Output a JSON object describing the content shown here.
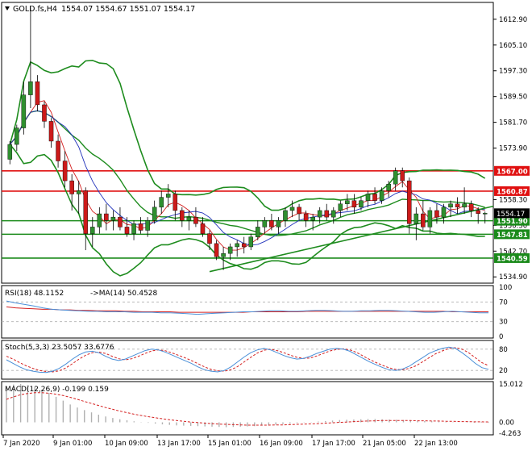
{
  "header": {
    "symbol": "GOLD.fs,H4",
    "ohlc": "1554.07 1554.67 1551.07 1554.17",
    "menu_icon": "triangle-down-icon"
  },
  "colors": {
    "bull": "#2f8f2f",
    "bear": "#cc1a1a",
    "band": "#1e8c1e",
    "hline_red": "#e01010",
    "hline_green": "#1a8a1a",
    "ma_red": "#d42020",
    "ma_blue": "#2233bb",
    "rsi": "#4a8fd8",
    "stoch_main": "#4a8fd8",
    "stoch_signal": "#d42020",
    "macd_hist": "#b0b0b0",
    "macd_signal": "#d42020",
    "grid": "#b0b0b0"
  },
  "chart_data": [
    {
      "type": "candlestick",
      "symbol": "GOLD.fs",
      "timeframe": "H4",
      "y_ticks": [
        1612.9,
        1605.1,
        1597.3,
        1589.5,
        1581.7,
        1573.9,
        1558.3,
        1550.5,
        1542.7,
        1534.9
      ],
      "x_ticks": [
        "7 Jan 2020",
        "9 Jan 01:00",
        "10 Jan 09:00",
        "13 Jan 17:00",
        "15 Jan 01:00",
        "16 Jan 09:00",
        "17 Jan 17:00",
        "21 Jan 05:00",
        "22 Jan 13:00"
      ],
      "ylim": [
        1533.0,
        1618.0
      ],
      "horizontal_levels": [
        {
          "value": 1567.0,
          "label": "1567.00",
          "color": "red"
        },
        {
          "value": 1560.87,
          "label": "1560.87",
          "color": "red"
        },
        {
          "value": 1551.9,
          "label": "1551.90",
          "color": "green"
        },
        {
          "value": 1547.81,
          "label": "1547.81",
          "color": "green"
        },
        {
          "value": 1540.59,
          "label": "1540.59",
          "color": "green"
        }
      ],
      "current_price": {
        "value": 1554.17,
        "label": "1554.17"
      },
      "candles": [
        [
          1570.5,
          1576.0,
          1569.0,
          1575.0
        ],
        [
          1575.0,
          1581.0,
          1573.0,
          1580.0
        ],
        [
          1580.0,
          1594.0,
          1578.0,
          1590.0
        ],
        [
          1590.0,
          1616.5,
          1586.0,
          1594.0
        ],
        [
          1594.0,
          1596.0,
          1585.0,
          1587.0
        ],
        [
          1587.0,
          1588.0,
          1580.0,
          1582.0
        ],
        [
          1582.0,
          1583.0,
          1574.0,
          1576.0
        ],
        [
          1576.0,
          1578.0,
          1568.0,
          1570.0
        ],
        [
          1570.0,
          1573.0,
          1562.0,
          1564.0
        ],
        [
          1564.0,
          1566.0,
          1555.0,
          1560.0
        ],
        [
          1560.0,
          1564.0,
          1554.0,
          1561.0
        ],
        [
          1561.0,
          1562.0,
          1543.0,
          1548.0
        ],
        [
          1548.0,
          1553.0,
          1544.0,
          1550.0
        ],
        [
          1550.0,
          1556.0,
          1548.0,
          1554.0
        ],
        [
          1554.0,
          1557.0,
          1549.0,
          1552.0
        ],
        [
          1552.0,
          1555.0,
          1549.0,
          1553.0
        ],
        [
          1553.0,
          1556.0,
          1549.0,
          1550.0
        ],
        [
          1550.0,
          1553.0,
          1547.0,
          1548.0
        ],
        [
          1548.0,
          1552.0,
          1546.0,
          1551.0
        ],
        [
          1551.0,
          1553.0,
          1548.0,
          1549.0
        ],
        [
          1549.0,
          1553.0,
          1547.0,
          1552.0
        ],
        [
          1552.0,
          1558.0,
          1551.0,
          1556.0
        ],
        [
          1556.0,
          1561.0,
          1554.0,
          1559.0
        ],
        [
          1559.0,
          1563.0,
          1556.0,
          1560.0
        ],
        [
          1560.0,
          1561.0,
          1552.0,
          1555.0
        ],
        [
          1555.0,
          1556.0,
          1550.0,
          1552.0
        ],
        [
          1552.0,
          1555.0,
          1549.0,
          1553.0
        ],
        [
          1553.0,
          1556.0,
          1550.0,
          1551.0
        ],
        [
          1551.0,
          1553.0,
          1547.0,
          1548.0
        ],
        [
          1548.0,
          1549.0,
          1543.0,
          1545.0
        ],
        [
          1545.0,
          1546.0,
          1540.0,
          1541.0
        ],
        [
          1541.0,
          1544.0,
          1537.0,
          1542.0
        ],
        [
          1542.0,
          1545.0,
          1540.0,
          1544.0
        ],
        [
          1544.0,
          1546.0,
          1541.0,
          1545.0
        ],
        [
          1545.0,
          1547.0,
          1542.0,
          1544.0
        ],
        [
          1544.0,
          1548.0,
          1543.0,
          1547.0
        ],
        [
          1547.0,
          1552.0,
          1546.0,
          1550.0
        ],
        [
          1550.0,
          1553.0,
          1548.0,
          1552.0
        ],
        [
          1552.0,
          1554.0,
          1549.0,
          1550.0
        ],
        [
          1550.0,
          1553.0,
          1548.0,
          1552.0
        ],
        [
          1552.0,
          1556.0,
          1550.0,
          1555.0
        ],
        [
          1555.0,
          1558.0,
          1553.0,
          1556.0
        ],
        [
          1556.0,
          1557.0,
          1552.0,
          1554.0
        ],
        [
          1554.0,
          1555.0,
          1550.0,
          1552.0
        ],
        [
          1552.0,
          1554.0,
          1549.0,
          1553.0
        ],
        [
          1553.0,
          1556.0,
          1551.0,
          1555.0
        ],
        [
          1555.0,
          1557.0,
          1552.0,
          1553.0
        ],
        [
          1553.0,
          1556.0,
          1551.0,
          1555.0
        ],
        [
          1555.0,
          1558.0,
          1553.0,
          1557.0
        ],
        [
          1557.0,
          1560.0,
          1555.0,
          1558.0
        ],
        [
          1558.0,
          1560.0,
          1554.0,
          1556.0
        ],
        [
          1556.0,
          1559.0,
          1555.0,
          1558.0
        ],
        [
          1558.0,
          1561.0,
          1556.0,
          1560.0
        ],
        [
          1560.0,
          1562.0,
          1557.0,
          1558.0
        ],
        [
          1558.0,
          1562.0,
          1557.0,
          1561.0
        ],
        [
          1561.0,
          1564.0,
          1559.0,
          1563.0
        ],
        [
          1563.0,
          1568.0,
          1561.0,
          1567.0
        ],
        [
          1567.0,
          1568.0,
          1562.0,
          1564.0
        ],
        [
          1564.0,
          1565.0,
          1548.0,
          1551.0
        ],
        [
          1551.0,
          1556.0,
          1546.0,
          1554.0
        ],
        [
          1554.0,
          1558.0,
          1549.0,
          1550.0
        ],
        [
          1550.0,
          1556.0,
          1548.0,
          1555.0
        ],
        [
          1555.0,
          1557.0,
          1551.0,
          1553.0
        ],
        [
          1553.0,
          1557.0,
          1551.0,
          1556.0
        ],
        [
          1556.0,
          1558.0,
          1553.0,
          1557.0
        ],
        [
          1557.0,
          1559.0,
          1554.0,
          1556.0
        ],
        [
          1556.0,
          1562.0,
          1554.0,
          1557.0
        ],
        [
          1557.0,
          1558.0,
          1553.0,
          1555.0
        ],
        [
          1555.0,
          1556.0,
          1551.0,
          1554.07
        ],
        [
          1554.07,
          1554.67,
          1551.07,
          1554.17
        ]
      ]
    },
    {
      "type": "line",
      "indicator": "RSI",
      "label": "RSI(18) 48.1152",
      "ma_label": "->MA(14) 50.4528",
      "levels": [
        70,
        30
      ],
      "y_ticks": [
        100,
        70,
        30,
        0
      ],
      "ylim": [
        0,
        100
      ],
      "rsi": [
        72,
        68,
        65,
        62,
        58,
        55,
        54,
        53,
        52,
        51,
        51,
        50,
        50,
        50,
        49,
        49,
        49,
        48,
        48,
        47,
        46,
        45,
        46,
        47,
        48,
        49,
        50,
        50,
        51,
        52,
        52,
        51,
        51,
        52,
        53,
        53,
        52,
        51,
        51,
        52,
        52,
        53,
        53,
        52,
        51,
        50,
        49,
        49,
        50,
        51,
        50,
        49,
        48,
        48
      ],
      "ma": [
        60,
        58,
        57,
        56,
        55,
        55,
        54,
        54,
        53,
        53,
        52,
        52,
        52,
        51,
        51,
        50,
        50,
        50,
        50,
        49,
        49,
        49,
        49,
        49,
        49,
        49,
        49,
        50,
        50,
        50,
        50,
        50,
        50,
        51,
        51,
        51,
        51,
        51,
        51,
        51,
        51,
        51,
        51,
        51,
        51,
        51,
        51,
        51,
        51,
        50,
        50,
        50,
        50,
        50
      ]
    },
    {
      "type": "line",
      "indicator": "Stochastic",
      "label": "Stoch(5,3,3) 23.5057 33.6776",
      "levels": [
        80,
        20
      ],
      "y_ticks": [
        80,
        20
      ],
      "ylim": [
        0,
        100
      ],
      "main": [
        50,
        40,
        30,
        22,
        18,
        15,
        14,
        18,
        26,
        38,
        52,
        64,
        72,
        74,
        70,
        60,
        52,
        48,
        52,
        60,
        68,
        76,
        80,
        78,
        72,
        64,
        56,
        48,
        40,
        30,
        22,
        18,
        16,
        20,
        30,
        44,
        58,
        70,
        78,
        82,
        78,
        70,
        62,
        56,
        52,
        54,
        60,
        68,
        74,
        80,
        82,
        80,
        74,
        64,
        54,
        44,
        36,
        28,
        22,
        20,
        24,
        32,
        44,
        56,
        68,
        76,
        82,
        86,
        82,
        70,
        56,
        40,
        28,
        23.5
      ],
      "signal": [
        60,
        52,
        42,
        33,
        26,
        20,
        17,
        16,
        19,
        27,
        39,
        52,
        63,
        70,
        72,
        68,
        60,
        53,
        50,
        53,
        60,
        68,
        75,
        78,
        76,
        70,
        63,
        56,
        48,
        39,
        30,
        23,
        19,
        18,
        22,
        31,
        44,
        57,
        69,
        77,
        80,
        76,
        70,
        63,
        57,
        54,
        55,
        61,
        68,
        75,
        79,
        81,
        78,
        71,
        61,
        51,
        42,
        34,
        27,
        23,
        22,
        26,
        33,
        44,
        56,
        67,
        75,
        82,
        84,
        80,
        70,
        56,
        42,
        33.7
      ]
    },
    {
      "type": "bar",
      "indicator": "MACD",
      "label": "MACD(12,26,9) -0.199 0.159",
      "y_ticks": [
        "15.012",
        "0.00",
        "-4.263"
      ],
      "ylim": [
        -4.263,
        15.012
      ],
      "histogram": [
        13.5,
        14.8,
        15.0,
        14.6,
        13.8,
        12.8,
        11.5,
        10.0,
        8.5,
        7.0,
        5.8,
        4.8,
        3.9,
        3.0,
        2.3,
        1.7,
        1.2,
        0.8,
        0.4,
        0.1,
        -0.2,
        -0.5,
        -0.8,
        -1.0,
        -1.2,
        -1.3,
        -1.4,
        -1.5,
        -1.6,
        -1.7,
        -1.8,
        -1.9,
        -1.8,
        -1.7,
        -1.6,
        -1.5,
        -1.3,
        -1.1,
        -0.9,
        -0.7,
        -0.5,
        -0.3,
        -0.1,
        0.1,
        0.3,
        0.5,
        0.7,
        0.9,
        1.0,
        1.1,
        1.2,
        1.3,
        1.3,
        1.2,
        1.1,
        1.0,
        0.9,
        0.8,
        0.6,
        0.5,
        0.4,
        0.3,
        0.2,
        0.1,
        0.0,
        -0.1,
        -0.15,
        -0.18,
        -0.199
      ],
      "signal": [
        9.0,
        10.0,
        10.8,
        11.3,
        11.6,
        11.6,
        11.4,
        11.0,
        10.5,
        9.8,
        9.0,
        8.2,
        7.4,
        6.6,
        5.8,
        5.1,
        4.4,
        3.8,
        3.2,
        2.7,
        2.2,
        1.8,
        1.4,
        1.0,
        0.7,
        0.4,
        0.1,
        -0.1,
        -0.3,
        -0.5,
        -0.7,
        -0.8,
        -0.9,
        -1.0,
        -1.1,
        -1.1,
        -1.1,
        -1.1,
        -1.0,
        -1.0,
        -0.9,
        -0.8,
        -0.7,
        -0.6,
        -0.5,
        -0.3,
        -0.2,
        0.0,
        0.1,
        0.3,
        0.4,
        0.5,
        0.6,
        0.7,
        0.7,
        0.7,
        0.7,
        0.7,
        0.6,
        0.6,
        0.5,
        0.5,
        0.4,
        0.4,
        0.3,
        0.3,
        0.2,
        0.2,
        0.159
      ]
    }
  ]
}
